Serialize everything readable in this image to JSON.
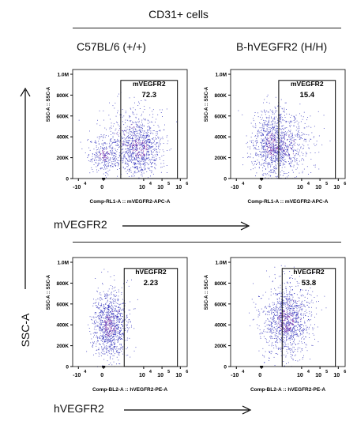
{
  "header": {
    "title": "CD31+ cells"
  },
  "columns": [
    "C57BL/6 (+/+)",
    "B-hVEGFR2 (H/H)"
  ],
  "row_labels": {
    "mvegfr2": "mVEGFR2",
    "hvegfr2": "hVEGFR2"
  },
  "ssc_axis_label": "SSC-A",
  "colors": {
    "points": "#2b2bb8",
    "dense": "#7a1fa0",
    "axis": "#000000"
  },
  "chart_data": [
    {
      "type": "scatter",
      "ylabel": "SSC-A :: SSC-A",
      "xlabel": "Comp-RL1-A :: mVEGFR2-APC-A",
      "yticks": [
        "0",
        "200K",
        "400K",
        "600K",
        "800K",
        "1.0M"
      ],
      "xticks": [
        "-10",
        "0",
        "10",
        "10",
        "10"
      ],
      "xtick_exponents": [
        "4",
        "",
        "4",
        "5",
        "6"
      ],
      "gate": {
        "label": "mVEGFR2",
        "value": "72.3"
      },
      "population": "C57BL/6 (+/+)"
    },
    {
      "type": "scatter",
      "ylabel": "SSC-A :: SSC-A",
      "xlabel": "Comp-RL1-A :: mVEGFR2-APC-A",
      "yticks": [
        "0",
        "200K",
        "400K",
        "600K",
        "800K",
        "1.0M"
      ],
      "xticks": [
        "-10",
        "0",
        "10",
        "10",
        "10"
      ],
      "xtick_exponents": [
        "4",
        "",
        "4",
        "5",
        "6"
      ],
      "gate": {
        "label": "mVEGFR2",
        "value": "15.4"
      },
      "population": "B-hVEGFR2 (H/H)"
    },
    {
      "type": "scatter",
      "ylabel": "SSC-A :: SSC-A",
      "xlabel": "Comp-BL2-A :: hVEGFR2-PE-A",
      "yticks": [
        "0",
        "200K",
        "400K",
        "600K",
        "800K",
        "1.0M"
      ],
      "xticks": [
        "-10",
        "0",
        "10",
        "10",
        "10"
      ],
      "xtick_exponents": [
        "4",
        "",
        "4",
        "5",
        "6"
      ],
      "gate": {
        "label": "hVEGFR2",
        "value": "2.23"
      },
      "population": "C57BL/6 (+/+)"
    },
    {
      "type": "scatter",
      "ylabel": "SSC-A :: SSC-A",
      "xlabel": "Comp-BL2-A :: hVEGFR2-PE-A",
      "yticks": [
        "0",
        "200K",
        "400K",
        "600K",
        "800K",
        "1.0M"
      ],
      "xticks": [
        "-10",
        "0",
        "10",
        "10",
        "10"
      ],
      "xtick_exponents": [
        "4",
        "",
        "4",
        "5",
        "6"
      ],
      "gate": {
        "label": "hVEGFR2",
        "value": "53.8"
      },
      "population": "B-hVEGFR2 (H/H)"
    }
  ]
}
